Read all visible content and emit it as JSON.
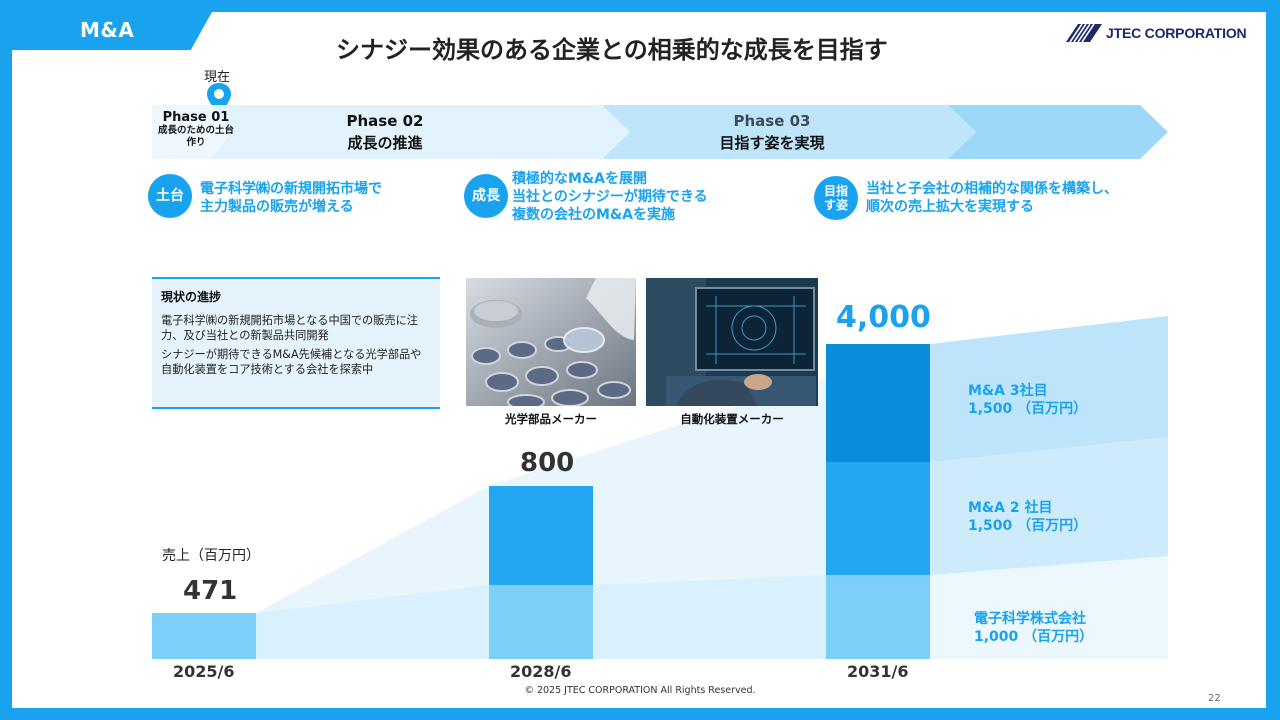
{
  "section": "M&A",
  "title": "シナジー効果のある企業との相乗的な成長を目指す",
  "logo": {
    "text": "JTEC CORPORATION",
    "color": "#1c2a6b"
  },
  "now_label": "現在",
  "phases": [
    {
      "title": "Phase 01",
      "sub": "成長のための土台作り"
    },
    {
      "title": "Phase 02",
      "sub": "成長の推進"
    },
    {
      "title": "Phase 03",
      "sub": "目指す姿を実現"
    }
  ],
  "pillars": [
    {
      "badge": "土台",
      "lines": [
        "電子科学㈱の新規開拓市場で",
        "主力製品の販売が増える"
      ]
    },
    {
      "badge": "成長",
      "lines": [
        "積極的なM&Aを展開",
        "当社とのシナジーが期待できる",
        "複数の会社のM&Aを実施"
      ]
    },
    {
      "badge": "目指す姿",
      "lines": [
        "当社と子会社の相補的な関係を構築し、",
        "順次の売上拡大を実現する"
      ]
    }
  ],
  "progress": {
    "title": "現状の進捗",
    "p1": "電子科学㈱の新規開拓市場となる中国での販売に注力、及び当社との新製品共同開発",
    "p2": "シナジーが期待できるM&A先候補となる光学部品や自動化装置をコア技術とする会社を探索中"
  },
  "photos": [
    {
      "icon": "optical-lens-photo",
      "caption": "光学部品メーカー"
    },
    {
      "icon": "automation-monitor-photo",
      "caption": "自動化装置メーカー"
    }
  ],
  "chart_data": {
    "type": "bar",
    "ylabel": "売上（百万円）",
    "categories": [
      "2025/6",
      "2028/6",
      "2031/6"
    ],
    "totals": [
      "471",
      "800",
      "4,000"
    ],
    "series": [
      {
        "name": "電子科学株式会社",
        "values": [
          0,
          200,
          1000
        ]
      },
      {
        "name": "M&A 2社目",
        "values": [
          0,
          0,
          1500
        ]
      },
      {
        "name": "M&A 3社目",
        "values": [
          0,
          0,
          1500
        ]
      }
    ],
    "base_values": [
      471,
      600,
      0
    ],
    "segment_labels": [
      {
        "name": "M&A 3社目",
        "value": "1,500 （百万円）"
      },
      {
        "name": "M&A  2 社目",
        "value": "1,500 （百万円）"
      },
      {
        "name": "電子科学株式会社",
        "value": "1,000 （百万円）"
      }
    ],
    "colors": {
      "base": "#7dcffa",
      "mid": "#22a7f0",
      "top": "#0a8ddb",
      "accent": "#19a3ee"
    }
  },
  "copyright": "© 2025 JTEC CORPORATION All Rights Reserved.",
  "page_number": "22"
}
